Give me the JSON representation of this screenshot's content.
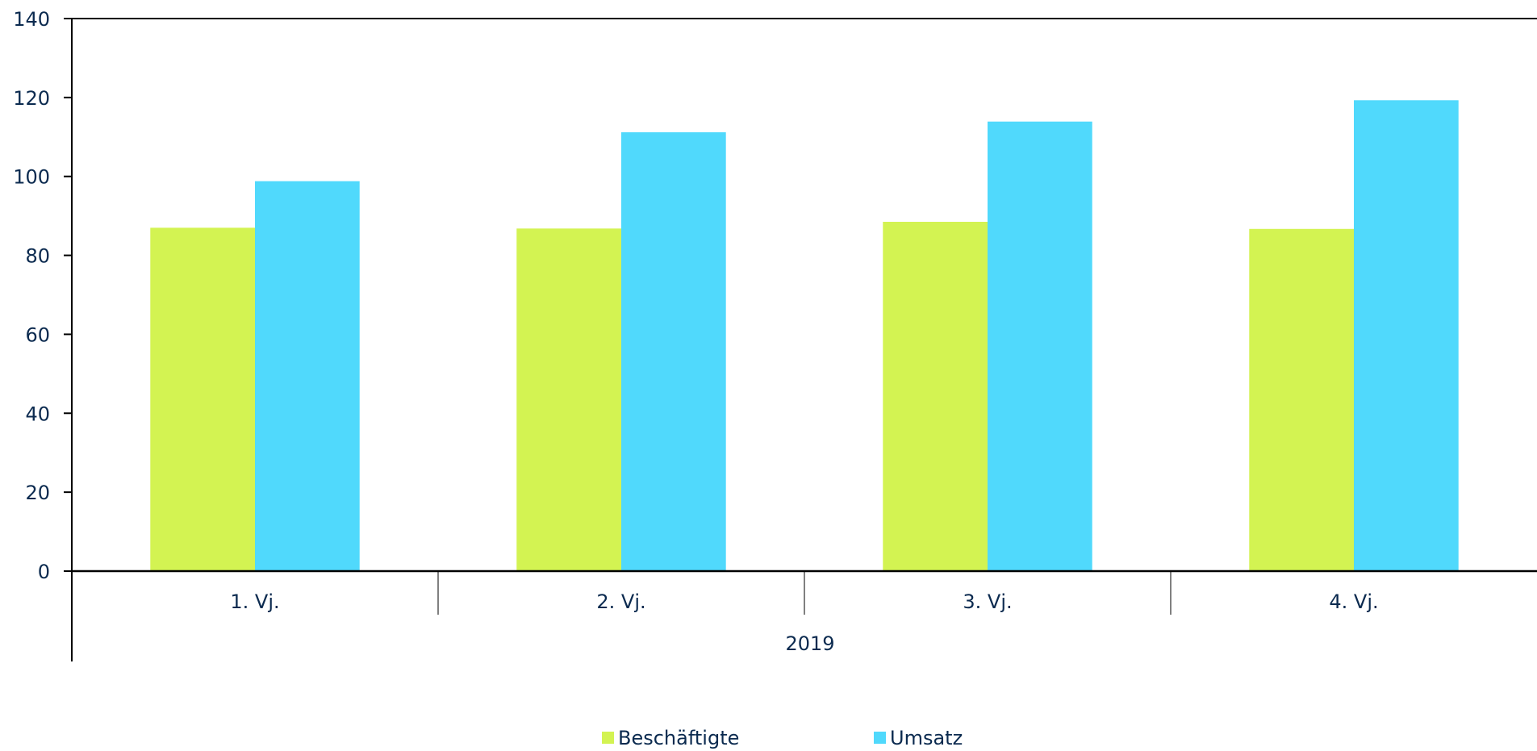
{
  "chart_data": {
    "type": "bar",
    "categories": [
      "1. Vj.",
      "2. Vj.",
      "3. Vj.",
      "4. Vj."
    ],
    "group_label": "2019",
    "series": [
      {
        "name": "Beschäftigte",
        "color": "#d3f352",
        "values": [
          87.0,
          86.8,
          88.5,
          86.7
        ]
      },
      {
        "name": "Umsatz",
        "color": "#50d9fc",
        "values": [
          98.8,
          111.2,
          113.9,
          119.3
        ]
      }
    ],
    "y_ticks": [
      0,
      20,
      40,
      60,
      80,
      100,
      120,
      140
    ],
    "ylim": [
      0,
      140
    ],
    "grid": false,
    "legend_position": "bottom"
  }
}
